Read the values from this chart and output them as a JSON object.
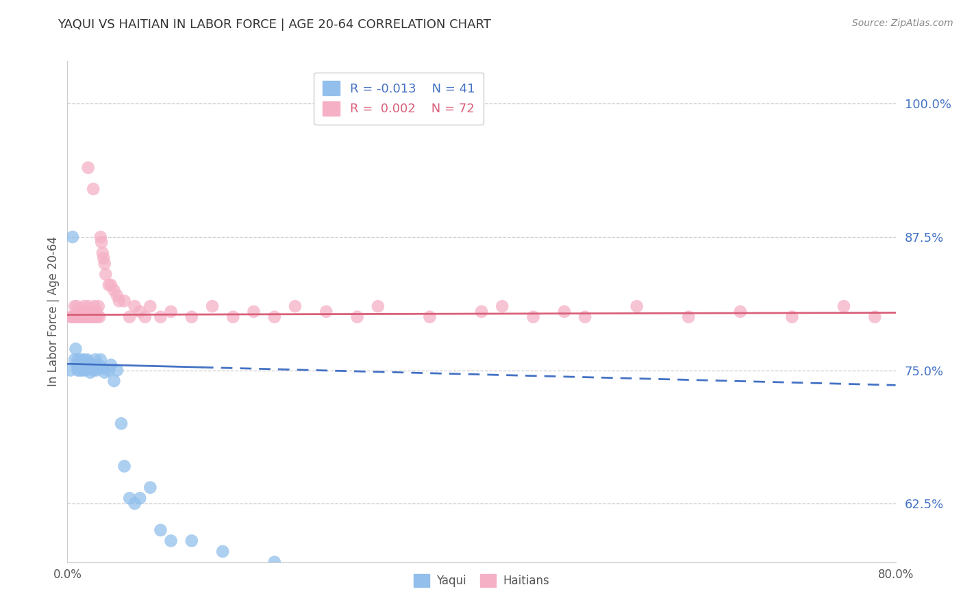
{
  "title": "YAQUI VS HAITIAN IN LABOR FORCE | AGE 20-64 CORRELATION CHART",
  "source": "Source: ZipAtlas.com",
  "ylabel": "In Labor Force | Age 20-64",
  "xlim": [
    0.0,
    0.8
  ],
  "ylim": [
    0.57,
    1.04
  ],
  "yticks": [
    0.625,
    0.75,
    0.875,
    1.0
  ],
  "ytick_labels": [
    "62.5%",
    "75.0%",
    "87.5%",
    "100.0%"
  ],
  "xticks": [
    0.0,
    0.1,
    0.2,
    0.3,
    0.4,
    0.5,
    0.6,
    0.7,
    0.8
  ],
  "xtick_labels": [
    "0.0%",
    "",
    "",
    "",
    "",
    "",
    "",
    "",
    "80.0%"
  ],
  "yaqui_R": -0.013,
  "yaqui_N": 41,
  "haitian_R": 0.002,
  "haitian_N": 72,
  "yaqui_color": "#92bfec",
  "haitian_color": "#f5b0c5",
  "yaqui_line_color": "#4472c4",
  "haitian_line_color": "#d9607a",
  "background_color": "#ffffff",
  "yaqui_x": [
    0.003,
    0.005,
    0.007,
    0.008,
    0.009,
    0.01,
    0.01,
    0.012,
    0.013,
    0.014,
    0.015,
    0.016,
    0.017,
    0.018,
    0.019,
    0.02,
    0.021,
    0.022,
    0.024,
    0.025,
    0.027,
    0.028,
    0.03,
    0.032,
    0.034,
    0.036,
    0.04,
    0.042,
    0.045,
    0.048,
    0.052,
    0.055,
    0.06,
    0.065,
    0.07,
    0.08,
    0.09,
    0.1,
    0.12,
    0.15,
    0.2
  ],
  "yaqui_y": [
    0.75,
    0.875,
    0.76,
    0.77,
    0.755,
    0.75,
    0.76,
    0.75,
    0.76,
    0.75,
    0.755,
    0.76,
    0.75,
    0.755,
    0.76,
    0.758,
    0.752,
    0.748,
    0.755,
    0.75,
    0.76,
    0.75,
    0.755,
    0.76,
    0.752,
    0.748,
    0.75,
    0.755,
    0.74,
    0.75,
    0.7,
    0.66,
    0.63,
    0.625,
    0.63,
    0.64,
    0.6,
    0.59,
    0.59,
    0.58,
    0.57
  ],
  "haitian_x": [
    0.003,
    0.005,
    0.006,
    0.007,
    0.008,
    0.009,
    0.01,
    0.01,
    0.011,
    0.012,
    0.013,
    0.014,
    0.015,
    0.015,
    0.016,
    0.017,
    0.018,
    0.019,
    0.02,
    0.021,
    0.022,
    0.023,
    0.024,
    0.025,
    0.026,
    0.027,
    0.028,
    0.029,
    0.03,
    0.031,
    0.032,
    0.033,
    0.034,
    0.035,
    0.036,
    0.037,
    0.04,
    0.042,
    0.045,
    0.048,
    0.05,
    0.055,
    0.06,
    0.065,
    0.07,
    0.075,
    0.08,
    0.09,
    0.1,
    0.12,
    0.14,
    0.16,
    0.18,
    0.2,
    0.22,
    0.25,
    0.28,
    0.3,
    0.35,
    0.4,
    0.42,
    0.45,
    0.48,
    0.5,
    0.55,
    0.6,
    0.65,
    0.7,
    0.75,
    0.78,
    0.02,
    0.025
  ],
  "haitian_y": [
    0.8,
    0.8,
    0.8,
    0.81,
    0.8,
    0.81,
    0.8,
    0.8,
    0.805,
    0.8,
    0.805,
    0.8,
    0.805,
    0.8,
    0.81,
    0.8,
    0.805,
    0.8,
    0.81,
    0.8,
    0.805,
    0.8,
    0.805,
    0.8,
    0.81,
    0.8,
    0.805,
    0.8,
    0.81,
    0.8,
    0.875,
    0.87,
    0.86,
    0.855,
    0.85,
    0.84,
    0.83,
    0.83,
    0.825,
    0.82,
    0.815,
    0.815,
    0.8,
    0.81,
    0.805,
    0.8,
    0.81,
    0.8,
    0.805,
    0.8,
    0.81,
    0.8,
    0.805,
    0.8,
    0.81,
    0.805,
    0.8,
    0.81,
    0.8,
    0.805,
    0.81,
    0.8,
    0.805,
    0.8,
    0.81,
    0.8,
    0.805,
    0.8,
    0.81,
    0.8,
    0.94,
    0.92
  ],
  "yaqui_trend_x0": 0.0,
  "yaqui_trend_x_solid_end": 0.13,
  "yaqui_trend_x1": 0.8,
  "yaqui_trend_y0": 0.756,
  "yaqui_trend_y1": 0.736,
  "haitian_trend_x0": 0.0,
  "haitian_trend_x1": 0.8,
  "haitian_trend_y0": 0.802,
  "haitian_trend_y1": 0.804
}
